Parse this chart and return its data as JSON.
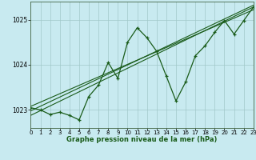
{
  "title": "Graphe pression niveau de la mer (hPa)",
  "background_color": "#c8eaf0",
  "grid_color": "#a0c8c8",
  "line_color": "#1a5c1a",
  "xlim": [
    0,
    23
  ],
  "ylim": [
    1022.6,
    1025.4
  ],
  "yticks": [
    1023,
    1024,
    1025
  ],
  "xticks": [
    0,
    1,
    2,
    3,
    4,
    5,
    6,
    7,
    8,
    9,
    10,
    11,
    12,
    13,
    14,
    15,
    16,
    17,
    18,
    19,
    20,
    21,
    22,
    23
  ],
  "main_x": [
    0,
    1,
    2,
    3,
    4,
    5,
    6,
    7,
    8,
    9,
    10,
    11,
    12,
    13,
    14,
    15,
    16,
    17,
    18,
    19,
    20,
    21,
    22,
    23
  ],
  "main_y": [
    1023.05,
    1023.0,
    1022.9,
    1022.95,
    1022.88,
    1022.78,
    1023.3,
    1023.55,
    1024.05,
    1023.7,
    1024.5,
    1024.82,
    1024.6,
    1024.3,
    1023.75,
    1023.2,
    1023.62,
    1024.2,
    1024.42,
    1024.72,
    1024.98,
    1024.68,
    1024.98,
    1025.28
  ],
  "trend_lines": [
    [
      0,
      23,
      1022.88,
      1025.28
    ],
    [
      0,
      23,
      1022.98,
      1025.32
    ],
    [
      0,
      23,
      1023.08,
      1025.22
    ]
  ]
}
